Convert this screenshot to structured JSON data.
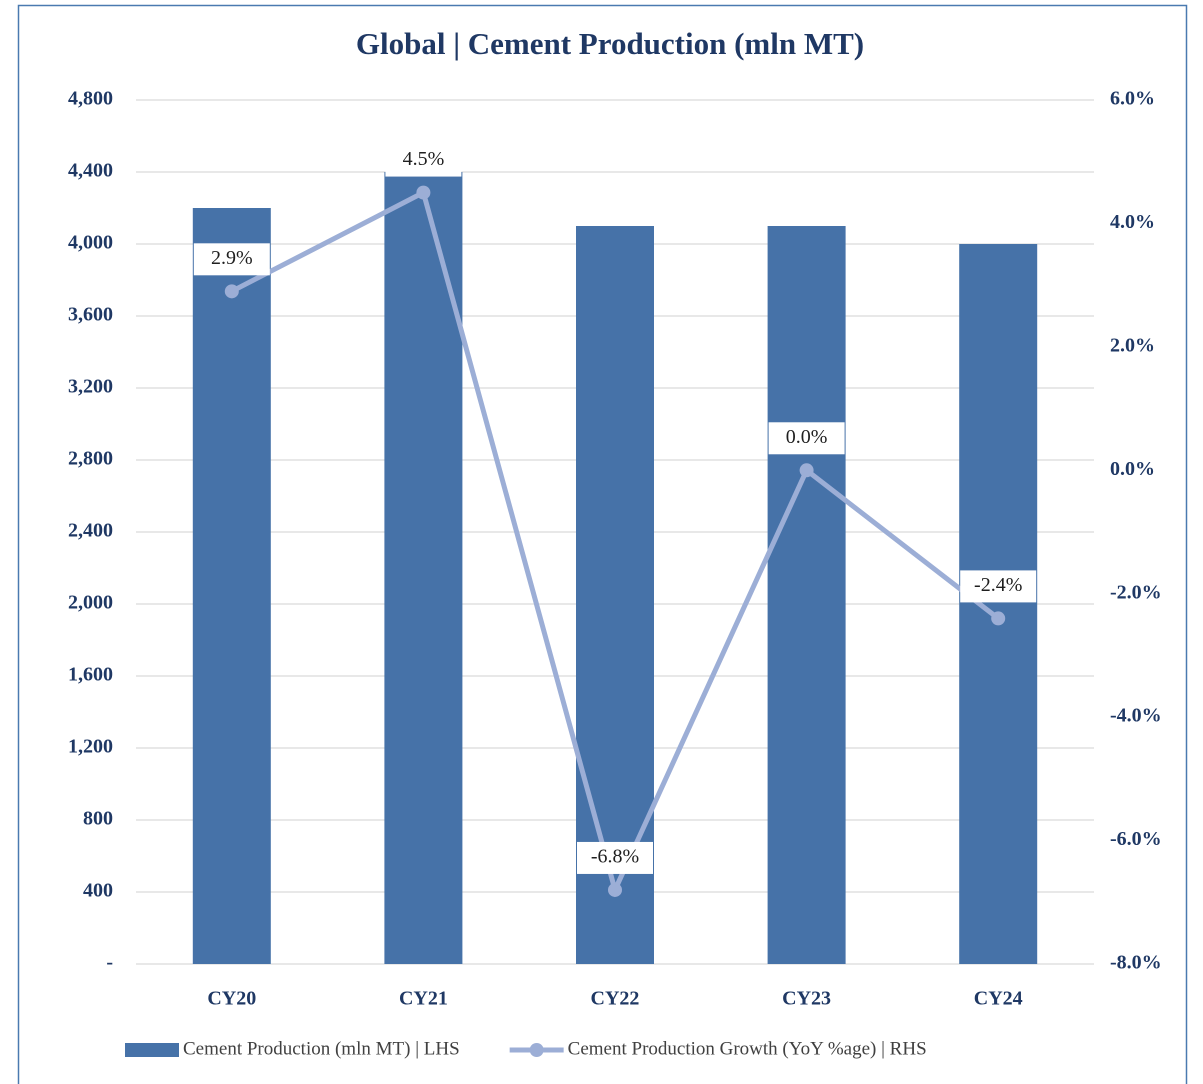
{
  "chart_data": {
    "type": "bar_line",
    "title": "Global | Cement Production (mln MT)",
    "categories": [
      "CY20",
      "CY21",
      "CY22",
      "CY23",
      "CY24"
    ],
    "series": [
      {
        "name": "Cement Production (mln MT) | LHS",
        "type": "bar",
        "color": "#4672a8",
        "values": [
          4200,
          4400,
          4100,
          4100,
          4000
        ]
      },
      {
        "name": "Cement Production Growth (YoY %age) | RHS",
        "type": "line",
        "axis": "y2",
        "color": "#9caed6",
        "values": [
          2.9,
          4.5,
          -6.8,
          0.0,
          -2.4
        ],
        "value_labels": [
          "2.9%",
          "4.5%",
          "-6.8%",
          "0.0%",
          "-2.4%"
        ]
      }
    ],
    "ylim": [
      0,
      4800
    ],
    "yticks": [
      {
        "value": 0,
        "label": "-"
      },
      400,
      800,
      {
        "value": 1200,
        "label": "1,200"
      },
      {
        "value": 1600,
        "label": "1,600"
      },
      {
        "value": 2000,
        "label": "2,000"
      },
      {
        "value": 2400,
        "label": "2,400"
      },
      {
        "value": 2800,
        "label": "2,800"
      },
      {
        "value": 3200,
        "label": "3,200"
      },
      {
        "value": 3600,
        "label": "3,600"
      },
      {
        "value": 4000,
        "label": "4,000"
      },
      {
        "value": 4400,
        "label": "4,400"
      },
      {
        "value": 4800,
        "label": "4,800"
      }
    ],
    "y2lim": [
      -8,
      6
    ],
    "y2ticks": [
      {
        "value": -8,
        "label": "-8.0%"
      },
      {
        "value": -6,
        "label": "-6.0%"
      },
      {
        "value": -4,
        "label": "-4.0%"
      },
      {
        "value": -2,
        "label": "-2.0%"
      },
      {
        "value": 0,
        "label": "0.0%"
      },
      {
        "value": 2,
        "label": "2.0%"
      },
      {
        "value": 4,
        "label": "4.0%"
      },
      {
        "value": 6,
        "label": "6.0%"
      }
    ],
    "grid": true,
    "legend": "bottom"
  }
}
